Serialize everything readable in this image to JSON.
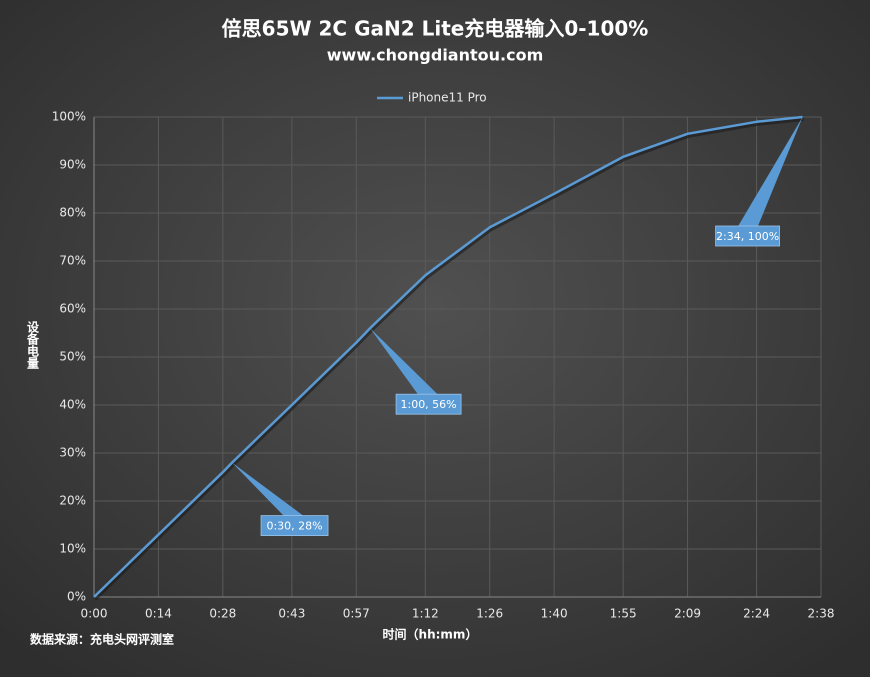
{
  "chart_data": {
    "type": "line",
    "title": "倍思65W 2C GaN2 Lite充电器输入0-100%",
    "subtitle": "www.chongdiantou.com",
    "y_label": "设备电量",
    "x_label": "时间（hh:mm）",
    "source": "数据来源：充电头网评测室",
    "x": [
      0,
      14,
      28,
      30,
      43,
      57,
      60,
      72,
      86,
      100,
      115,
      129,
      144,
      154
    ],
    "series": [
      {
        "name": "iPhone11 Pro",
        "color": "#5b9bd5",
        "values": [
          0,
          13,
          26,
          28,
          40,
          53,
          56,
          67,
          77,
          84,
          91.7,
          96.5,
          99,
          100
        ]
      }
    ],
    "xlim": [
      0,
      158
    ],
    "xticks": [
      {
        "value": 0,
        "label": "0:00"
      },
      {
        "value": 14,
        "label": "0:14"
      },
      {
        "value": 28,
        "label": "0:28"
      },
      {
        "value": 43,
        "label": "0:43"
      },
      {
        "value": 57,
        "label": "0:57"
      },
      {
        "value": 72,
        "label": "1:12"
      },
      {
        "value": 86,
        "label": "1:26"
      },
      {
        "value": 100,
        "label": "1:40"
      },
      {
        "value": 115,
        "label": "1:55"
      },
      {
        "value": 129,
        "label": "2:09"
      },
      {
        "value": 144,
        "label": "2:24"
      },
      {
        "value": 158,
        "label": "2:38"
      }
    ],
    "ylim": [
      0,
      100
    ],
    "yticks": [
      {
        "value": 0,
        "label": "0%"
      },
      {
        "value": 10,
        "label": "10%"
      },
      {
        "value": 20,
        "label": "20%"
      },
      {
        "value": 30,
        "label": "30%"
      },
      {
        "value": 40,
        "label": "40%"
      },
      {
        "value": 50,
        "label": "50%"
      },
      {
        "value": 60,
        "label": "60%"
      },
      {
        "value": 70,
        "label": "70%"
      },
      {
        "value": 80,
        "label": "80%"
      },
      {
        "value": 90,
        "label": "90%"
      },
      {
        "value": 100,
        "label": "100%"
      }
    ],
    "grid": true,
    "legend": "top",
    "annotations": [
      {
        "text": "0:30, 28%",
        "x": 30,
        "y": 28
      },
      {
        "text": "1:00, 56%",
        "x": 60,
        "y": 56
      },
      {
        "text": "2:34, 100%",
        "x": 154,
        "y": 100
      }
    ]
  }
}
